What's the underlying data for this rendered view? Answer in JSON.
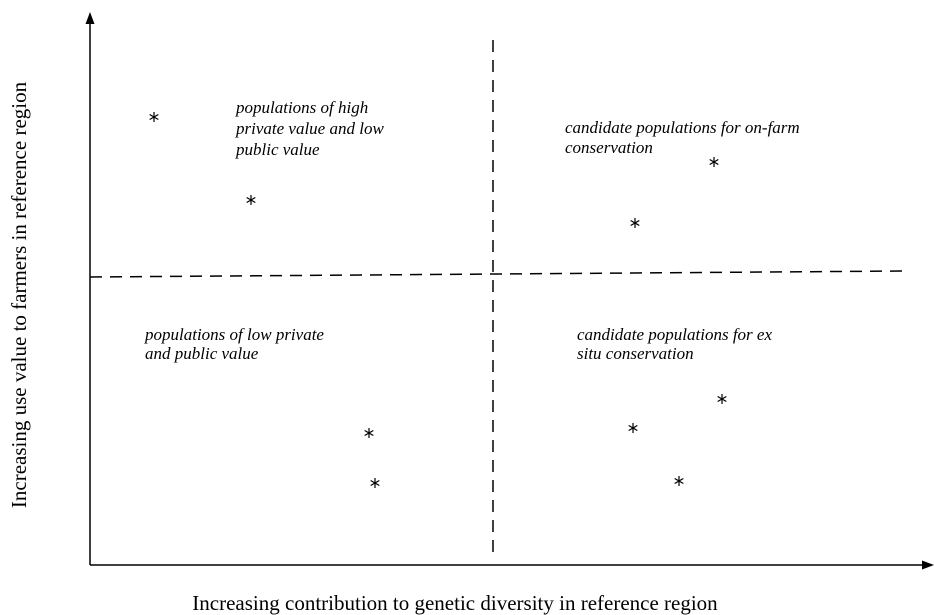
{
  "x_axis_label": "Increasing contribution to genetic diversity in reference region",
  "y_axis_label": "Increasing use value to farmers in reference region",
  "quadrants": [
    {
      "lines": [
        "populations of high",
        "private value and low",
        "public value"
      ]
    },
    {
      "lines": [
        "candidate populations for on-farm",
        "conservation"
      ]
    },
    {
      "lines": [
        "populations of low private",
        "and public value"
      ]
    },
    {
      "lines": [
        "candidate populations for ex",
        "situ conservation"
      ]
    }
  ]
}
